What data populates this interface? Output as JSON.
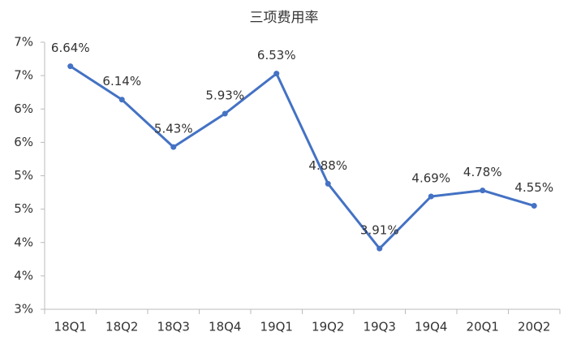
{
  "chart_data": {
    "type": "line",
    "title": "三项费用率",
    "categories": [
      "18Q1",
      "18Q2",
      "18Q3",
      "18Q4",
      "19Q1",
      "19Q2",
      "19Q3",
      "19Q4",
      "20Q1",
      "20Q2"
    ],
    "values": [
      6.64,
      6.14,
      5.43,
      5.93,
      6.53,
      4.88,
      3.91,
      4.69,
      4.78,
      4.55
    ],
    "value_labels": [
      "6.64%",
      "6.14%",
      "5.43%",
      "5.93%",
      "6.53%",
      "4.88%",
      "3.91%",
      "4.69%",
      "4.78%",
      "4.55%"
    ],
    "color": "#4472c4",
    "ylim": [
      3,
      7
    ],
    "yticks": [
      {
        "value": 3,
        "label": "3%"
      },
      {
        "value": 3.5,
        "label": "4%"
      },
      {
        "value": 4,
        "label": "4%"
      },
      {
        "value": 4.5,
        "label": "5%"
      },
      {
        "value": 5,
        "label": "5%"
      },
      {
        "value": 5.5,
        "label": "6%"
      },
      {
        "value": 6,
        "label": "6%"
      },
      {
        "value": 6.5,
        "label": "7%"
      },
      {
        "value": 7,
        "label": "7%"
      }
    ],
    "grid": false
  }
}
